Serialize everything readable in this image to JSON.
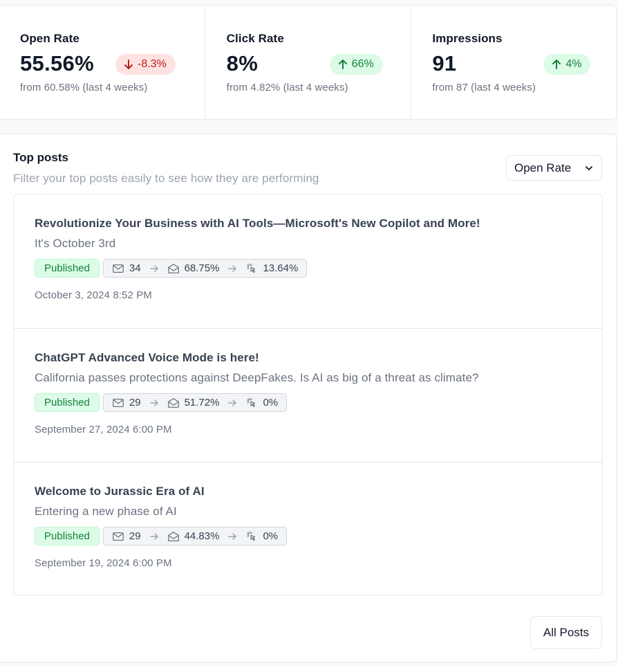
{
  "stats": [
    {
      "label": "Open Rate",
      "value": "55.56%",
      "change": "-8.3%",
      "direction": "down",
      "from": "from 60.58% (last 4 weeks)"
    },
    {
      "label": "Click Rate",
      "value": "8%",
      "change": "66%",
      "direction": "up",
      "from": "from 4.82% (last 4 weeks)"
    },
    {
      "label": "Impressions",
      "value": "91",
      "change": "4%",
      "direction": "up",
      "from": "from 87 (last 4 weeks)"
    }
  ],
  "top_posts": {
    "title": "Top posts",
    "subtitle": "Filter your top posts easily to see how they are performing",
    "filter_selected": "Open Rate",
    "posts": [
      {
        "title": "Revolutionize Your Business with AI Tools—Microsoft's New Copilot and More!",
        "subtitle": "It's October 3rd",
        "status": "Published",
        "recipients": "34",
        "open_rate": "68.75%",
        "click_rate": "13.64%",
        "date": "October 3, 2024 8:52 PM"
      },
      {
        "title": "ChatGPT Advanced Voice Mode is here!",
        "subtitle": "California passes protections against DeepFakes. Is AI as big of a threat as climate?",
        "status": "Published",
        "recipients": "29",
        "open_rate": "51.72%",
        "click_rate": "0%",
        "date": "September 27, 2024 6:00 PM"
      },
      {
        "title": "Welcome to Jurassic Era of AI",
        "subtitle": "Entering a new phase of AI",
        "status": "Published",
        "recipients": "29",
        "open_rate": "44.83%",
        "click_rate": "0%",
        "date": "September 19, 2024 6:00 PM"
      }
    ],
    "all_posts_label": "All Posts"
  },
  "colors": {
    "down": "#b91c1c",
    "up": "#15803d",
    "published_bg": "#dcfce7"
  }
}
